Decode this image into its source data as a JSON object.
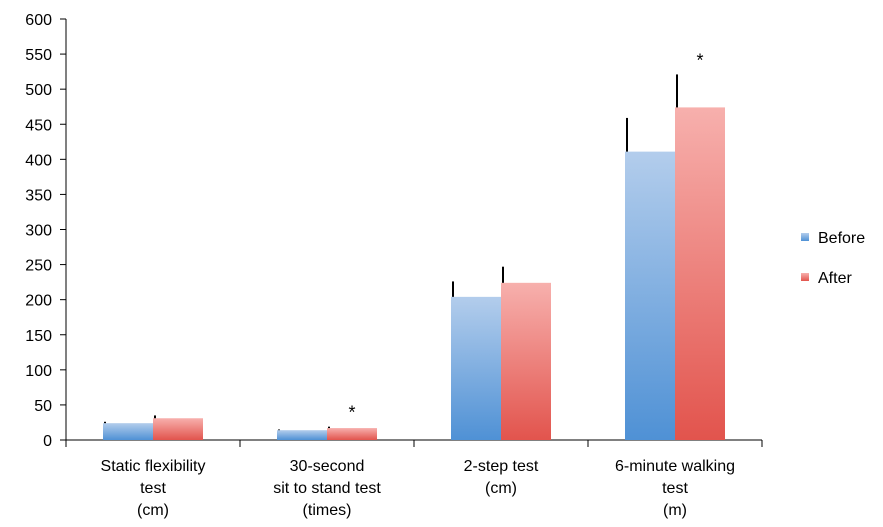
{
  "chart_data": {
    "type": "bar",
    "categories": [
      [
        "Static flexibility",
        "test",
        "(cm)"
      ],
      [
        "30-second",
        "sit to stand test",
        "(times)"
      ],
      [
        "2-step test",
        "(cm)"
      ],
      [
        "6-minute walking",
        "test",
        "(m)"
      ]
    ],
    "series": [
      {
        "name": "Before",
        "values": [
          24,
          14,
          204,
          411
        ],
        "error": [
          2,
          1,
          22,
          48
        ]
      },
      {
        "name": "After",
        "values": [
          31,
          17,
          224,
          474
        ],
        "error": [
          4,
          2,
          23,
          47
        ]
      }
    ],
    "significance": [
      "",
      "*",
      "",
      "*"
    ],
    "ylim": [
      0,
      600
    ],
    "yticks": [
      0,
      50,
      100,
      150,
      200,
      250,
      300,
      350,
      400,
      450,
      500,
      550,
      600
    ],
    "xlabel": "",
    "ylabel": "",
    "legend_position": "right",
    "grid": false,
    "colors": {
      "before_top": "#b3cdec",
      "before_bottom": "#4f91d5",
      "after_top": "#f7b0ad",
      "after_bottom": "#e2544d"
    }
  }
}
